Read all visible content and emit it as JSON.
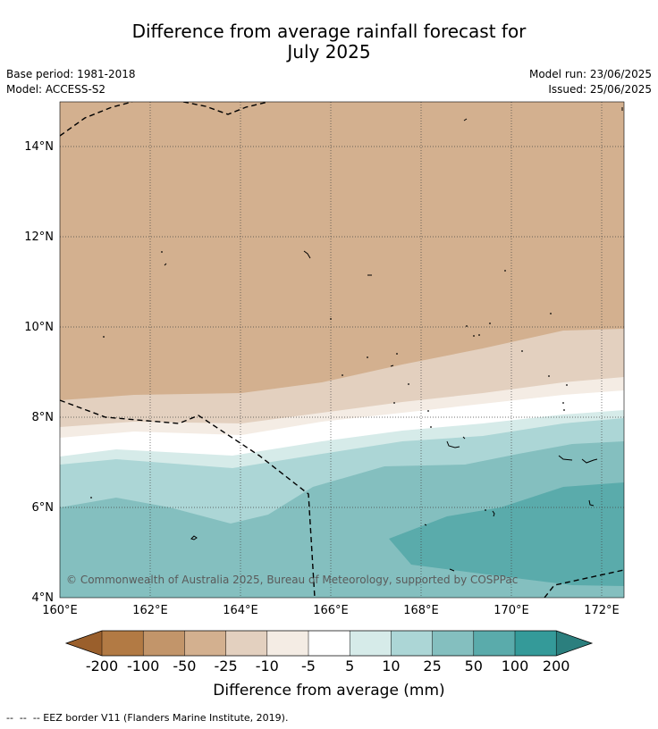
{
  "title_line1": "Difference from average rainfall forecast for",
  "title_line2": "July 2025",
  "info": {
    "base_period": "Base period: 1981-2018",
    "model": "Model: ACCESS-S2",
    "model_run": "Model run: 23/06/2025",
    "issued": "Issued: 25/06/2025"
  },
  "map": {
    "lat_ticks": [
      "14°N",
      "12°N",
      "10°N",
      "8°N",
      "6°N",
      "4°N"
    ],
    "lon_ticks": [
      "160°E",
      "162°E",
      "164°E",
      "166°E",
      "168°E",
      "170°E",
      "172°E"
    ],
    "copyright": "© Commonwealth of Australia 2025, Bureau of Meteorology, supported by COSPPac"
  },
  "colorbar": {
    "ticks": [
      "-200",
      "-100",
      "-50",
      "-25",
      "-10",
      "-5",
      "5",
      "10",
      "25",
      "50",
      "100",
      "200"
    ],
    "colors": [
      "#9a5f2c",
      "#b27a44",
      "#c2956a",
      "#d3b08f",
      "#e3d0bf",
      "#f4ece4",
      "#ffffff",
      "#d6ebe9",
      "#acd6d6",
      "#84bfbf",
      "#5aabab",
      "#349a99",
      "#2b7f7e"
    ],
    "label": "Difference from average (mm)"
  },
  "footnote": "--  --  -- EEZ border V11 (Flanders Marine Institute, 2019)."
}
